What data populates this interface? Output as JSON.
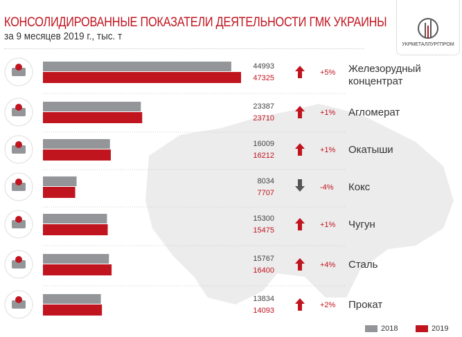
{
  "chart_data": {
    "type": "bar",
    "title": "КОНСОЛИДИРОВАННЫЕ ПОКАЗАТЕЛИ ДЕЯТЕЛЬНОСТИ ГМК УКРАИНЫ",
    "subtitle": "за 9 месяцев 2019 г., тыс. т",
    "categories": [
      "Железорудный концентрат",
      "Агломерат",
      "Окатыши",
      "Кокс",
      "Чугун",
      "Сталь",
      "Прокат"
    ],
    "series": [
      {
        "name": "2018",
        "color": "#939598",
        "values": [
          44993,
          23387,
          16009,
          8034,
          15300,
          15767,
          13834
        ]
      },
      {
        "name": "2019",
        "color": "#c0141e",
        "values": [
          47325,
          23710,
          16212,
          7707,
          15475,
          16400,
          14093
        ]
      }
    ],
    "changes": [
      "+5%",
      "+1%",
      "+1%",
      "-4%",
      "+1%",
      "+4%",
      "+2%"
    ],
    "icons": [
      "ore-wagon-icon",
      "sinter-wagon-icon",
      "pellets-icon",
      "coke-wagon-icon",
      "pig-iron-icon",
      "steel-ladle-icon",
      "rolled-coil-icon"
    ],
    "orientation": "horizontal",
    "legend_position": "bottom-right"
  },
  "logo": {
    "text": "УКРМЕТАЛЛУРГПРОМ"
  }
}
